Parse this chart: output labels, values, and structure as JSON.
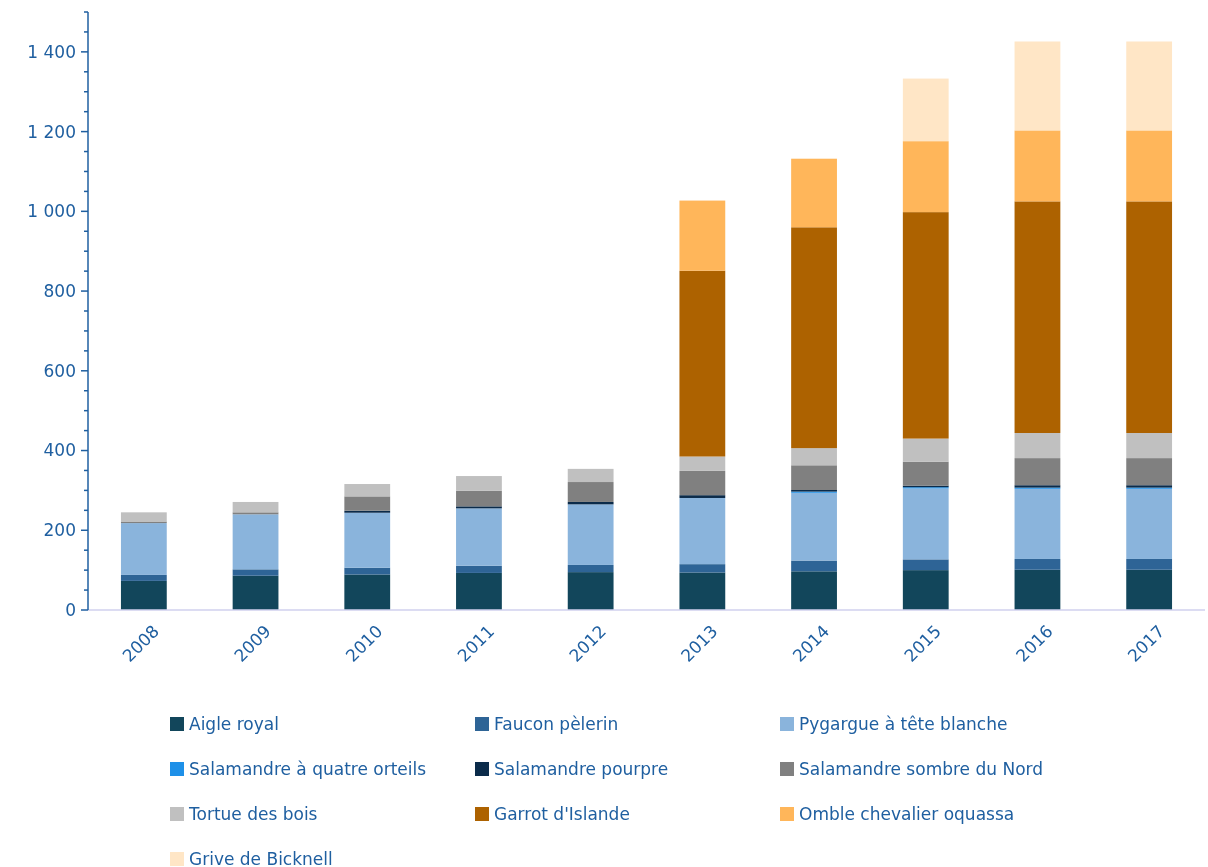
{
  "chart_data": {
    "type": "bar",
    "stacked": true,
    "categories": [
      "2008",
      "2009",
      "2010",
      "2011",
      "2012",
      "2013",
      "2014",
      "2015",
      "2016",
      "2017"
    ],
    "series": [
      {
        "name": "Aigle royal",
        "color": "#12465b",
        "values": [
          73,
          86,
          89,
          93,
          95,
          94,
          97,
          100,
          101,
          101
        ]
      },
      {
        "name": "Faucon pèlerin",
        "color": "#2e6496",
        "values": [
          15,
          16,
          17,
          18,
          18,
          21,
          27,
          27,
          27,
          27
        ]
      },
      {
        "name": "Pygargue à tête blanche",
        "color": "#8ab4dc",
        "values": [
          130,
          138,
          138,
          144,
          152,
          166,
          170,
          178,
          176,
          176
        ]
      },
      {
        "name": "Salamandre à quatre orteils",
        "color": "#1e90e8",
        "values": [
          0,
          0,
          0,
          0,
          0,
          0,
          3,
          3,
          3,
          3
        ]
      },
      {
        "name": "Salamandre pourpre",
        "color": "#0b2b4a",
        "values": [
          0,
          0,
          5,
          5,
          6,
          7,
          4,
          4,
          6,
          6
        ]
      },
      {
        "name": "Salamandre sombre du Nord",
        "color": "#808080",
        "values": [
          4,
          5,
          36,
          39,
          50,
          61,
          62,
          60,
          68,
          68
        ]
      },
      {
        "name": "Tortue des bois",
        "color": "#c0c0c0",
        "values": [
          23,
          26,
          31,
          37,
          33,
          36,
          43,
          58,
          63,
          63
        ]
      },
      {
        "name": "Garrot d'Islande",
        "color": "#ad6200",
        "values": [
          0,
          0,
          0,
          0,
          0,
          466,
          554,
          568,
          581,
          581
        ]
      },
      {
        "name": "Omble chevalier oquassa",
        "color": "#ffb65a",
        "values": [
          0,
          0,
          0,
          0,
          0,
          176,
          172,
          178,
          178,
          178
        ]
      },
      {
        "name": "Grive de Bicknell",
        "color": "#ffe6c6",
        "values": [
          0,
          0,
          0,
          0,
          0,
          0,
          0,
          157,
          223,
          223
        ]
      }
    ],
    "ylim": [
      0,
      1500
    ],
    "yticks": [
      0,
      {
        "value": 50,
        "label": null
      },
      {
        "value": 100,
        "label": null
      },
      {
        "value": 150,
        "label": null
      },
      200,
      {
        "value": 250,
        "label": null
      },
      {
        "value": 300,
        "label": null
      },
      {
        "value": 350,
        "label": null
      },
      400,
      {
        "value": 450,
        "label": null
      },
      {
        "value": 500,
        "label": null
      },
      {
        "value": 550,
        "label": null
      },
      600,
      {
        "value": 650,
        "label": null
      },
      {
        "value": 700,
        "label": null
      },
      {
        "value": 750,
        "label": null
      },
      800,
      {
        "value": 850,
        "label": null
      },
      {
        "value": 900,
        "label": null
      },
      {
        "value": 950,
        "label": null
      },
      {
        "value": 1000,
        "label": "1 000"
      },
      {
        "value": 1050,
        "label": null
      },
      {
        "value": 1100,
        "label": null
      },
      {
        "value": 1150,
        "label": null
      },
      {
        "value": 1200,
        "label": "1 200"
      },
      {
        "value": 1250,
        "label": null
      },
      {
        "value": 1300,
        "label": null
      },
      {
        "value": 1350,
        "label": null
      },
      {
        "value": 1400,
        "label": "1 400"
      },
      {
        "value": 1450,
        "label": null
      },
      {
        "value": 1500,
        "label": null
      }
    ],
    "legend": "bottom"
  }
}
